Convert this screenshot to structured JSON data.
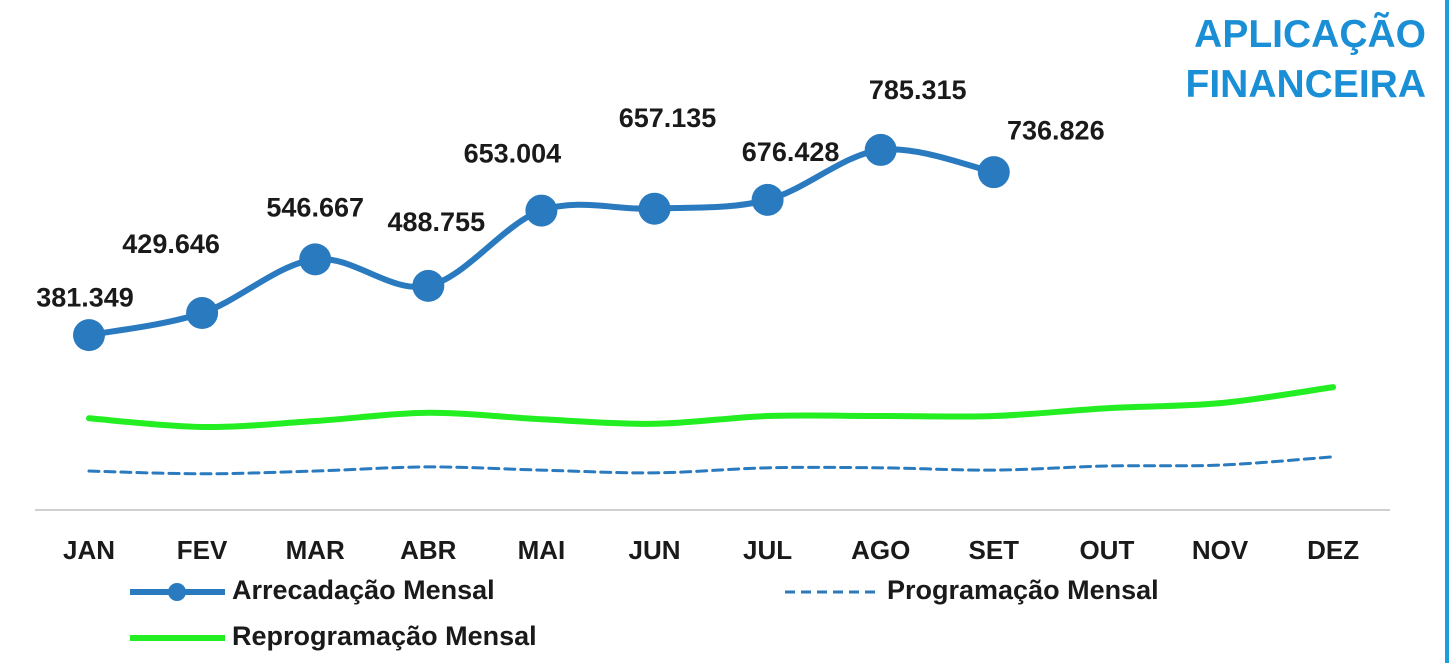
{
  "chart_data": {
    "type": "line",
    "title": "APLICAÇÃO FINANCEIRA",
    "categories": [
      "JAN",
      "FEV",
      "MAR",
      "ABR",
      "MAI",
      "JUN",
      "JUL",
      "AGO",
      "SET",
      "OUT",
      "NOV",
      "DEZ"
    ],
    "series": [
      {
        "name": "Arrecadação Mensal",
        "color": "#2a7abf",
        "style": "solid-markers",
        "values": [
          381349,
          429646,
          546667,
          488755,
          653004,
          657135,
          676428,
          785315,
          736826,
          null,
          null,
          null
        ],
        "value_labels": [
          "381.349",
          "429.646",
          "546.667",
          "488.755",
          "653.004",
          "657.135",
          "676.428",
          "785.315",
          "736.826",
          null,
          null,
          null
        ]
      },
      {
        "name": "Programação Mensal",
        "color": "#2a7abf",
        "style": "dashed",
        "values": [
          85000,
          79000,
          85000,
          94000,
          87000,
          81000,
          92000,
          92000,
          87000,
          96000,
          98000,
          116000
        ]
      },
      {
        "name": "Reprogramação Mensal",
        "color": "#22ee22",
        "style": "solid",
        "values": [
          200000,
          181000,
          194000,
          212000,
          198000,
          188000,
          205000,
          205000,
          205000,
          222000,
          233000,
          268000
        ]
      }
    ],
    "ylim": [
      0,
      1000000
    ]
  }
}
